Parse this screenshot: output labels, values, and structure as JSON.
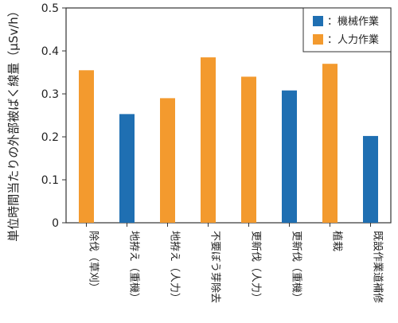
{
  "chart_data": {
    "type": "bar",
    "title": "",
    "xlabel": "",
    "ylabel": "単位時間当たりの外部被ばく線量（μSv/h）",
    "ylim": [
      0,
      0.5
    ],
    "yticks": [
      "0",
      "0.1",
      "0.2",
      "0.3",
      "0.4",
      "0.5"
    ],
    "grid": false,
    "legend_position": "top-right",
    "categories": [
      "除伐（草刈）",
      "地拵え（重機）",
      "地拵え（人力）",
      "不要ぼう芽除去",
      "更新伐（人力）",
      "更新伐（重機）",
      "植栽",
      "既設作業道補修"
    ],
    "values": [
      0.355,
      0.253,
      0.29,
      0.385,
      0.34,
      0.308,
      0.37,
      0.202
    ],
    "bar_series": [
      "人力作業",
      "機械作業",
      "人力作業",
      "人力作業",
      "人力作業",
      "機械作業",
      "人力作業",
      "機械作業"
    ],
    "series": [
      {
        "name": "機械作業",
        "color": "#1f6fb2"
      },
      {
        "name": "人力作業",
        "color": "#f39a2e"
      }
    ]
  }
}
